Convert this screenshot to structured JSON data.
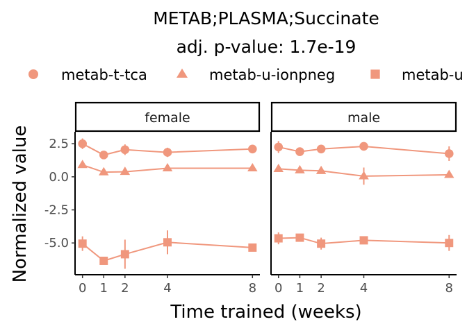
{
  "chart_data": {
    "type": "line",
    "title": "METAB;PLASMA;Succinate",
    "subtitle": "adj. p-value: 1.7e-19",
    "xlabel": "Time trained (weeks)",
    "ylabel": "Normalized value",
    "x_ticks": [
      0,
      1,
      2,
      4,
      8
    ],
    "y_ticks": [
      2.5,
      0.0,
      -2.5,
      -5.0
    ],
    "y_tick_labels": [
      "2.5",
      "0.0",
      "-2.5",
      "-5.0"
    ],
    "xlim": [
      -0.35,
      8.35
    ],
    "ylim": [
      -7.4,
      3.4
    ],
    "grid": false,
    "legend_position": "top",
    "color": "#F0977D",
    "series_legend": [
      {
        "name": "metab-t-tca",
        "shape": "circle"
      },
      {
        "name": "metab-u-ionpneg",
        "shape": "triangle"
      },
      {
        "name": "metab-u",
        "shape": "square"
      }
    ],
    "panels": [
      {
        "label": "female",
        "series": [
          {
            "shape": "circle",
            "x": [
              0,
              1,
              2,
              4,
              8
            ],
            "y": [
              2.5,
              1.65,
              2.05,
              1.85,
              2.1
            ],
            "err": [
              0.4,
              0.2,
              0.4,
              0.35,
              0.2
            ]
          },
          {
            "shape": "triangle",
            "x": [
              0,
              1,
              2,
              4,
              8
            ],
            "y": [
              0.9,
              0.35,
              0.38,
              0.65,
              0.65
            ],
            "err": [
              0.2,
              0.15,
              0.15,
              0.2,
              0.2
            ]
          },
          {
            "shape": "square",
            "x": [
              0,
              1,
              2,
              4,
              8
            ],
            "y": [
              -5.05,
              -6.35,
              -5.85,
              -4.95,
              -5.35
            ],
            "err": [
              0.55,
              0.15,
              1.1,
              0.9,
              0.25
            ]
          }
        ]
      },
      {
        "label": "male",
        "series": [
          {
            "shape": "circle",
            "x": [
              0,
              1,
              2,
              4,
              8
            ],
            "y": [
              2.25,
              1.9,
              2.1,
              2.3,
              1.75
            ],
            "err": [
              0.45,
              0.2,
              0.2,
              0.2,
              0.55
            ]
          },
          {
            "shape": "triangle",
            "x": [
              0,
              1,
              2,
              4,
              8
            ],
            "y": [
              0.6,
              0.5,
              0.45,
              0.05,
              0.15
            ],
            "err": [
              0.2,
              0.15,
              0.2,
              0.65,
              0.2
            ]
          },
          {
            "shape": "square",
            "x": [
              0,
              1,
              2,
              4,
              8
            ],
            "y": [
              -4.65,
              -4.6,
              -5.05,
              -4.8,
              -5.0
            ],
            "err": [
              0.45,
              0.2,
              0.45,
              0.25,
              0.6
            ]
          }
        ]
      }
    ]
  }
}
